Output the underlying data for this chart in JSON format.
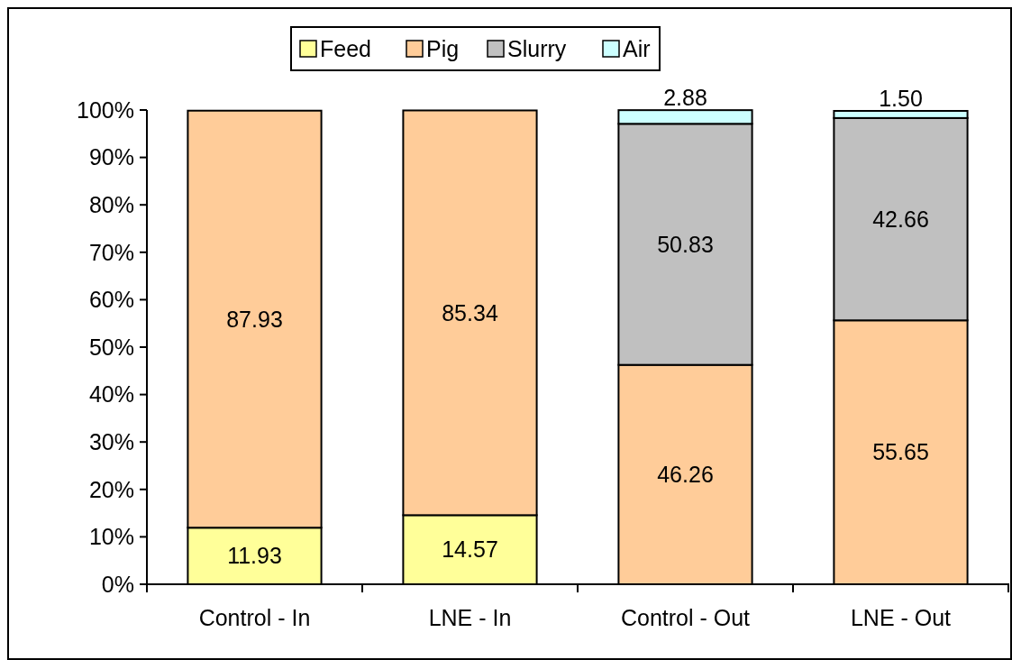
{
  "chart_data": {
    "type": "bar",
    "stacked": true,
    "categories": [
      "Control - In",
      "LNE - In",
      "Control - Out",
      "LNE - Out"
    ],
    "series": [
      {
        "name": "Feed",
        "color": "#ffff99",
        "values": [
          11.93,
          14.57,
          null,
          null
        ],
        "value_labels": [
          "11.93",
          "14.57",
          null,
          null
        ]
      },
      {
        "name": "Pig",
        "color": "#ffcc99",
        "values": [
          87.93,
          85.34,
          46.26,
          55.65
        ],
        "value_labels": [
          "87.93",
          "85.34",
          "46.26",
          "55.65"
        ]
      },
      {
        "name": "Slurry",
        "color": "#c0c0c0",
        "values": [
          null,
          null,
          50.83,
          42.66
        ],
        "value_labels": [
          null,
          null,
          "50.83",
          "42.66"
        ]
      },
      {
        "name": "Air",
        "color": "#ccffff",
        "values": [
          null,
          null,
          2.88,
          1.5
        ],
        "value_labels": [
          null,
          null,
          "2.88",
          "1.50"
        ]
      }
    ],
    "ylim": [
      0,
      100
    ],
    "yticks": [
      {
        "value": 0,
        "label": "0%"
      },
      {
        "value": 10,
        "label": "10%"
      },
      {
        "value": 20,
        "label": "20%"
      },
      {
        "value": 30,
        "label": "30%"
      },
      {
        "value": 40,
        "label": "40%"
      },
      {
        "value": 50,
        "label": "50%"
      },
      {
        "value": 60,
        "label": "60%"
      },
      {
        "value": 70,
        "label": "70%"
      },
      {
        "value": 80,
        "label": "80%"
      },
      {
        "value": 90,
        "label": "90%"
      },
      {
        "value": 100,
        "label": "100%"
      }
    ],
    "legend": "top",
    "grid": false
  }
}
